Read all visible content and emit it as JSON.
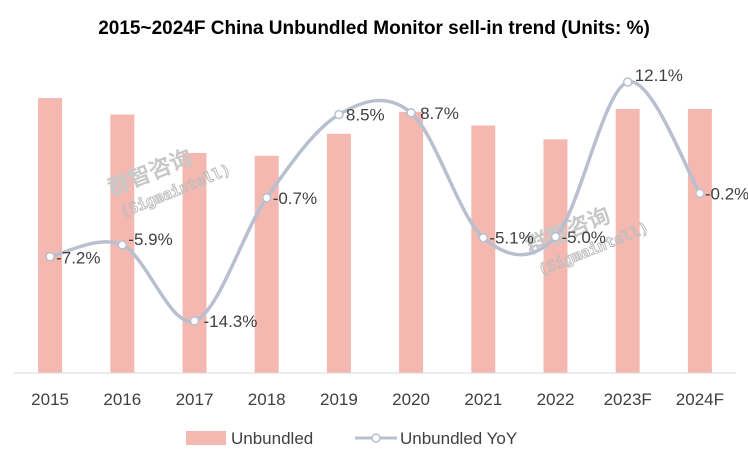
{
  "chart_data": {
    "type": "bar",
    "title": "2015~2024F China Unbundled Monitor sell-in trend (Units: %)",
    "categories": [
      "2015",
      "2016",
      "2017",
      "2018",
      "2019",
      "2020",
      "2021",
      "2022",
      "2023F",
      "2024F"
    ],
    "series": [
      {
        "name": "Unbundled",
        "type": "bar",
        "color": "#f4b8b0",
        "values": [
          100,
          94,
          80,
          79,
          87,
          95,
          90,
          85,
          96,
          96
        ]
      },
      {
        "name": "Unbundled YoY",
        "type": "line",
        "color": "#b8c0d0",
        "values": [
          -7.2,
          -5.9,
          -14.3,
          -0.7,
          8.5,
          8.7,
          -5.1,
          -5.0,
          12.1,
          -0.2
        ],
        "labels": [
          "-7.2%",
          "-5.9%",
          "-14.3%",
          "-0.7%",
          "8.5%",
          "8.7%",
          "-5.1%",
          "-5.0%",
          "12.1%",
          "-0.2%"
        ]
      }
    ],
    "legend_position": "bottom",
    "grid": false
  },
  "watermarks": [
    {
      "text_cn": "群智咨询",
      "text_en": "(Sigmaintell)"
    },
    {
      "text_cn": "群智咨询",
      "text_en": "(Sigmaintell)"
    }
  ]
}
